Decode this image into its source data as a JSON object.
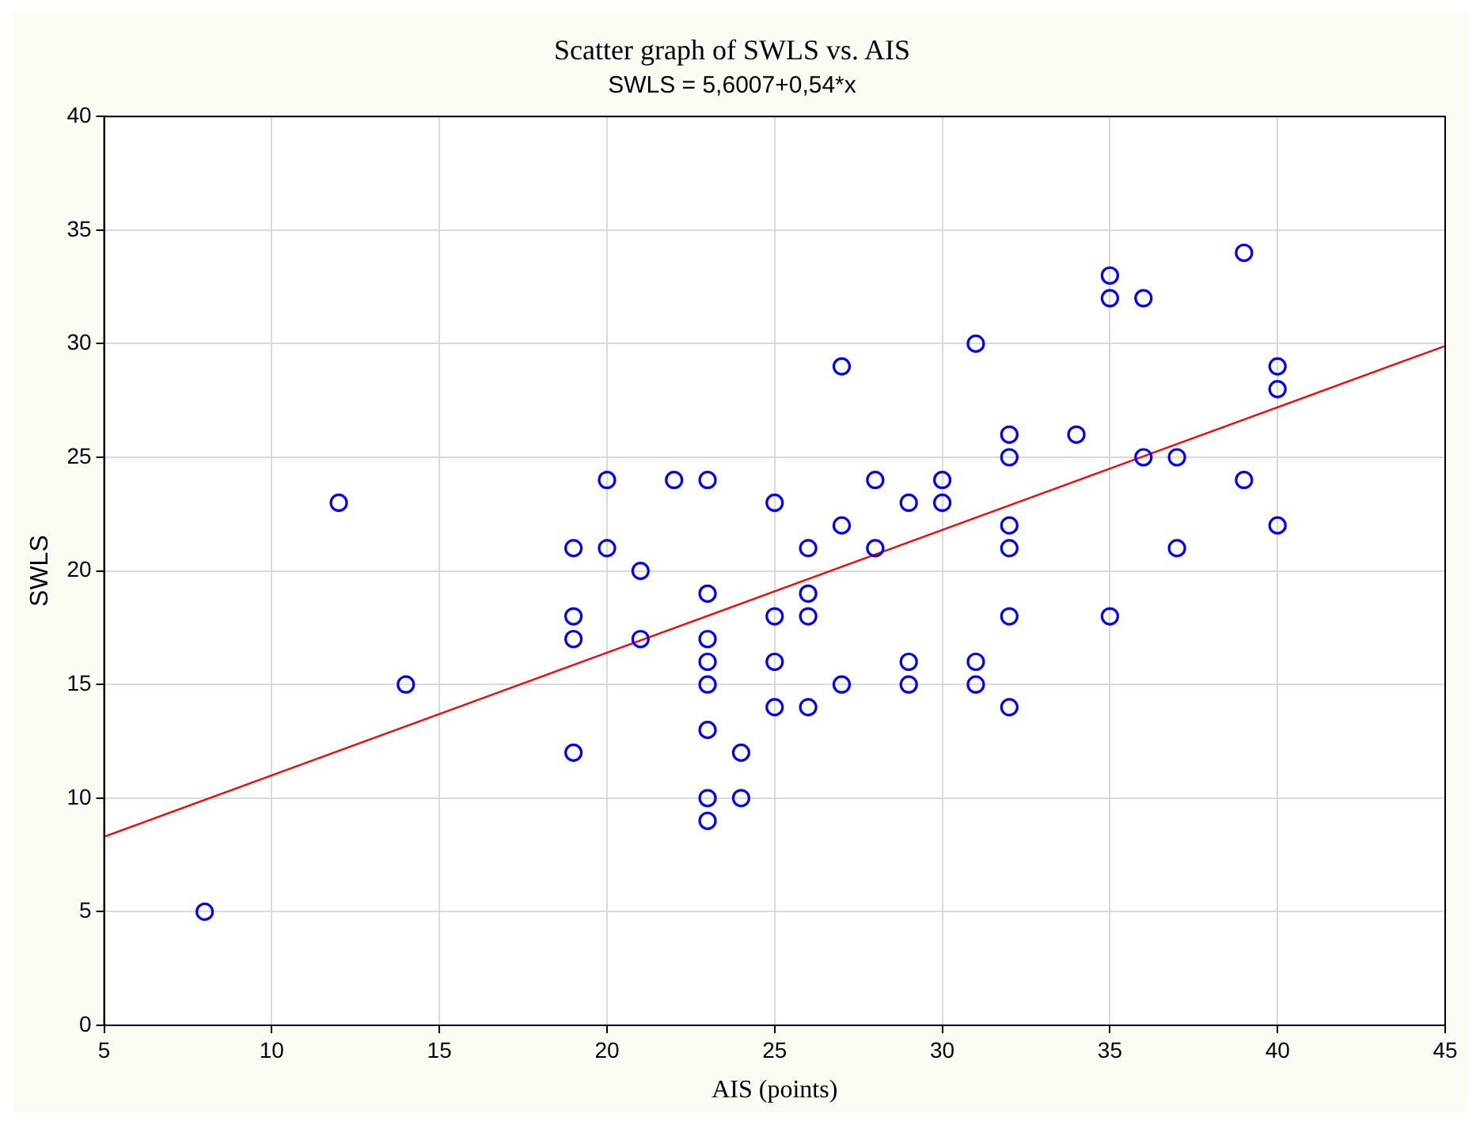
{
  "chart_data": {
    "type": "scatter",
    "title": "Scatter graph of SWLS vs. AIS",
    "subtitle": "SWLS = 5,6007+0,54*x",
    "xlabel": "AIS (points)",
    "ylabel": "SWLS",
    "xlim": [
      5,
      45
    ],
    "xticks": [
      5,
      10,
      15,
      20,
      25,
      30,
      35,
      40,
      45
    ],
    "ylim": [
      0,
      40
    ],
    "yticks": [
      0,
      5,
      10,
      15,
      20,
      25,
      30,
      35,
      40
    ],
    "grid": true,
    "legend": false,
    "marker": "circle",
    "series": [
      {
        "color": "#0000ff",
        "x": [
          8,
          12,
          14,
          19,
          19,
          19,
          19,
          20,
          20,
          21,
          21,
          22,
          23,
          23,
          23,
          23,
          23,
          23,
          23,
          23,
          24,
          24,
          25,
          25,
          25,
          25,
          26,
          26,
          26,
          26,
          27,
          27,
          27,
          28,
          28,
          29,
          29,
          29,
          30,
          30,
          31,
          31,
          31,
          32,
          32,
          32,
          32,
          32,
          32,
          34,
          35,
          35,
          35,
          36,
          36,
          37,
          37,
          39,
          39,
          40,
          40,
          40
        ],
        "values": [
          5,
          23,
          15,
          21,
          18,
          17,
          12,
          24,
          21,
          20,
          17,
          24,
          24,
          19,
          17,
          16,
          15,
          13,
          10,
          9,
          12,
          10,
          23,
          18,
          16,
          14,
          21,
          19,
          18,
          14,
          29,
          22,
          15,
          24,
          21,
          23,
          16,
          15,
          24,
          23,
          30,
          16,
          15,
          26,
          25,
          22,
          21,
          18,
          14,
          26,
          33,
          32,
          18,
          32,
          25,
          25,
          21,
          34,
          24,
          29,
          28,
          22
        ]
      },
      {
        "type": "line",
        "color": "#ff0000",
        "marker": "none",
        "x": [
          5,
          45
        ],
        "values": [
          8.3007,
          29.9007
        ]
      }
    ]
  }
}
